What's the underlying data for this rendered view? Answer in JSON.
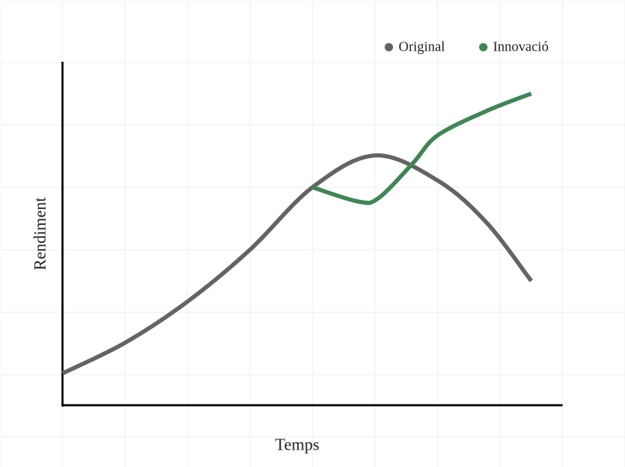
{
  "chart_data": {
    "type": "line",
    "xlabel": "Temps",
    "ylabel": "Rendiment",
    "xlim": [
      0,
      8
    ],
    "ylim": [
      0,
      5.5
    ],
    "legend": "top-right",
    "series": [
      {
        "name": "Original",
        "color": "#646464",
        "x": [
          0,
          1,
          2,
          3,
          4,
          5,
          6,
          6.78,
          7.5
        ],
        "values": [
          0.51,
          1.0,
          1.66,
          2.49,
          3.49,
          4.0,
          3.6,
          2.93,
          1.99
        ]
      },
      {
        "name": "Innovació",
        "color": "#3f8654",
        "x": [
          4,
          4.74,
          5.06,
          5.61,
          6,
          6.78,
          7.5
        ],
        "values": [
          3.49,
          3.26,
          3.32,
          3.88,
          4.32,
          4.71,
          4.99
        ]
      }
    ]
  }
}
